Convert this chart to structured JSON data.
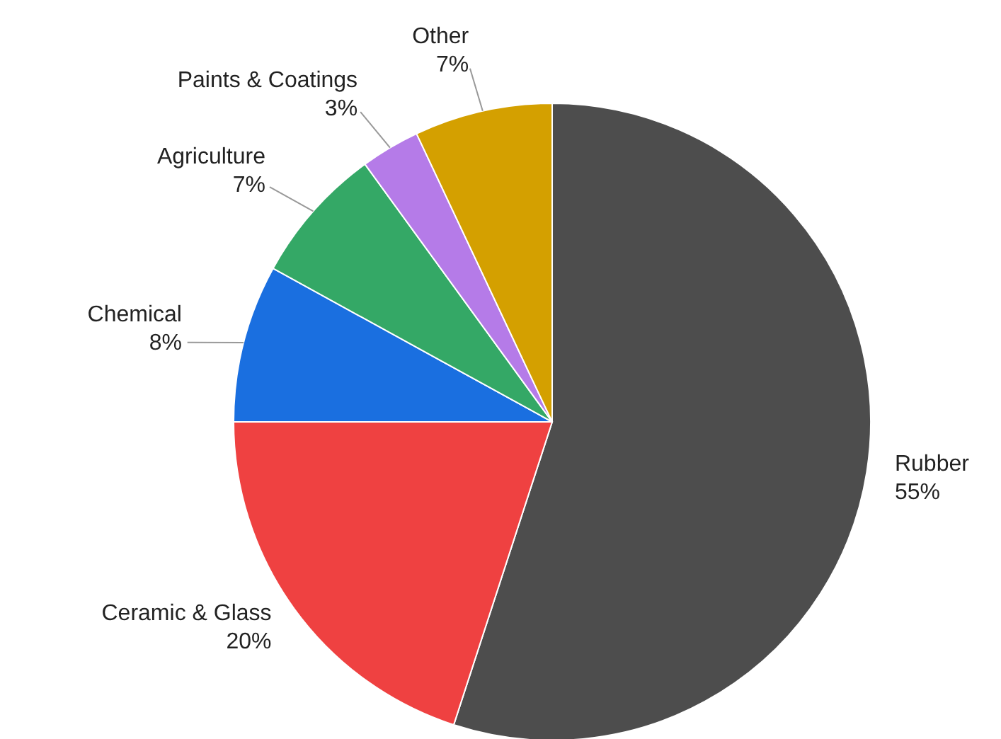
{
  "chart_data": {
    "type": "pie",
    "categories": [
      "Rubber",
      "Ceramic & Glass",
      "Chemical",
      "Agriculture",
      "Paints & Coatings",
      "Other"
    ],
    "values": [
      55,
      20,
      8,
      7,
      3,
      7
    ],
    "value_labels": [
      "55%",
      "20%",
      "8%",
      "7%",
      "3%",
      "7%"
    ],
    "colors": [
      "#4d4d4d",
      "#ef4141",
      "#1a6fe0",
      "#34a866",
      "#b57be8",
      "#d4a000"
    ],
    "legend": false
  }
}
